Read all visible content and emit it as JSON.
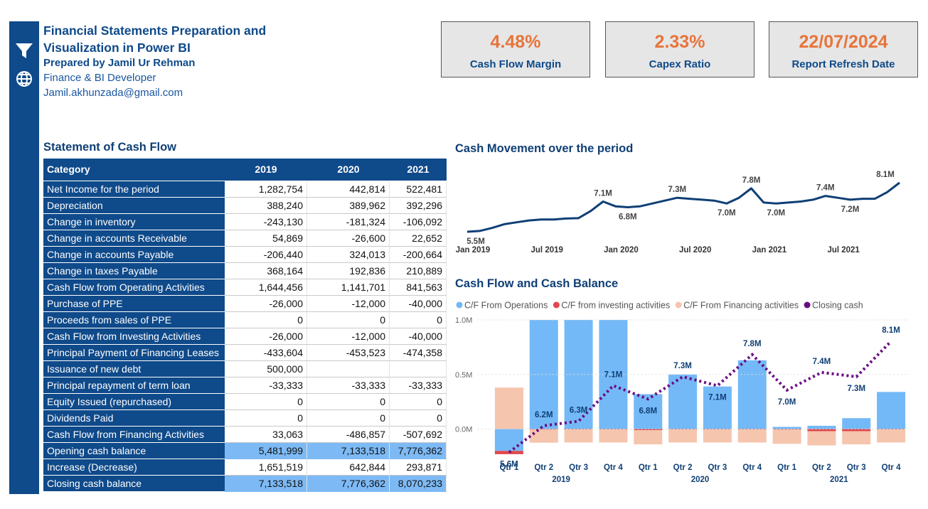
{
  "header": {
    "title": "Financial Statements Preparation and Visualization in Power BI",
    "author": "Prepared by Jamil Ur Rehman",
    "role": "Finance & BI Developer",
    "email": "Jamil.akhunzada@gmail.com"
  },
  "kpis": [
    {
      "value": "4.48%",
      "label": "Cash Flow Margin"
    },
    {
      "value": "2.33%",
      "label": "Capex Ratio"
    },
    {
      "value": "22/07/2024",
      "label": "Report Refresh Date"
    }
  ],
  "table": {
    "title": "Statement of Cash Flow",
    "columns": [
      "Category",
      "2019",
      "2020",
      "2021"
    ],
    "rows": [
      [
        "Net Income for the period",
        "1,282,754",
        "442,814",
        "522,481"
      ],
      [
        "Depreciation",
        "388,240",
        "389,962",
        "392,296"
      ],
      [
        "Change in inventory",
        "-243,130",
        "-181,324",
        "-106,092"
      ],
      [
        "Change in accounts Receivable",
        "54,869",
        "-26,600",
        "22,652"
      ],
      [
        "Change in accounts Payable",
        "-206,440",
        "324,013",
        "-200,664"
      ],
      [
        "Change in taxes Payable",
        "368,164",
        "192,836",
        "210,889"
      ],
      [
        "Cash Flow from Operating Activities",
        "1,644,456",
        "1,141,701",
        "841,563"
      ],
      [
        "Purchase of PPE",
        "-26,000",
        "-12,000",
        "-40,000"
      ],
      [
        "Proceeds from sales of PPE",
        "0",
        "0",
        "0"
      ],
      [
        "Cash Flow from Investing Activities",
        "-26,000",
        "-12,000",
        "-40,000"
      ],
      [
        "Principal Payment of Financing Leases",
        "-433,604",
        "-453,523",
        "-474,358"
      ],
      [
        "Issuance of new debt",
        "500,000",
        null,
        null
      ],
      [
        "Principal repayment of term loan",
        "-33,333",
        "-33,333",
        "-33,333"
      ],
      [
        "Equity Issued (repurchased)",
        "0",
        "0",
        "0"
      ],
      [
        "Dividends Paid",
        "0",
        "0",
        "0"
      ],
      [
        "Cash Flow from Financing Activities",
        "33,063",
        "-486,857",
        "-507,692"
      ],
      [
        "Opening cash balance",
        "5,481,999",
        "7,133,518",
        "7,776,362"
      ],
      [
        "Increase (Decrease)",
        "1,651,519",
        "642,844",
        "293,871"
      ],
      [
        "Closing cash balance",
        "7,133,518",
        "7,776,362",
        "8,070,233"
      ]
    ]
  },
  "chart_data": [
    {
      "type": "line",
      "title": "Cash Movement over the period",
      "categories": [
        "Jan 2019",
        null,
        null,
        null,
        null,
        null,
        "Jul 2019",
        null,
        null,
        null,
        null,
        null,
        "Jan 2020",
        null,
        null,
        null,
        null,
        null,
        "Jul 2020",
        null,
        null,
        null,
        null,
        null,
        "Jan 2021",
        null,
        null,
        null,
        null,
        null,
        "Jul 2021",
        null,
        null,
        null,
        null,
        null
      ],
      "values": [
        5.5,
        5.54,
        5.7,
        5.9,
        6.0,
        6.1,
        6.15,
        6.15,
        6.2,
        6.22,
        6.6,
        7.1,
        6.85,
        6.8,
        6.85,
        7.0,
        7.15,
        7.3,
        7.25,
        7.2,
        7.15,
        7.0,
        7.3,
        7.8,
        7.05,
        7.0,
        7.05,
        7.1,
        7.2,
        7.4,
        7.3,
        7.2,
        7.25,
        7.25,
        7.6,
        8.1
      ],
      "value_labels": [
        "5.5M",
        null,
        null,
        null,
        null,
        null,
        null,
        null,
        null,
        null,
        null,
        "7.1M",
        null,
        "6.8M",
        null,
        null,
        null,
        "7.3M",
        null,
        null,
        null,
        "7.0M",
        null,
        "7.8M",
        null,
        "7.0M",
        null,
        null,
        null,
        "7.4M",
        null,
        "7.2M",
        null,
        null,
        null,
        "8.1M"
      ],
      "color": "#0f3f75"
    },
    {
      "type": "combo",
      "title": "Cash Flow and Cash Balance",
      "categories": [
        "Qtr 1",
        "Qtr 2",
        "Qtr 3",
        "Qtr 4",
        "Qtr 1",
        "Qtr 2",
        "Qtr 3",
        "Qtr 4",
        "Qtr 1",
        "Qtr 2",
        "Qtr 3",
        "Qtr 4"
      ],
      "x_groups": [
        "2019",
        "2020",
        "2021"
      ],
      "ylim": [
        -0.27,
        1.0
      ],
      "yticks": [
        {
          "value": 1.0,
          "label": "1.0M"
        },
        {
          "value": 0.5,
          "label": "0.5M"
        },
        {
          "value": 0,
          "label": "0.0M"
        }
      ],
      "y2lim": [
        5.46,
        8.58
      ],
      "grid": true,
      "legend": "top",
      "series": [
        {
          "name": "C/F From Operations",
          "color": "#74b9f7",
          "values": [
            -0.2,
            1.1,
            1.1,
            1.1,
            0.32,
            0.5,
            0.39,
            0.63,
            0.02,
            0.03,
            0.1,
            0.34
          ]
        },
        {
          "name": "C/F from investing activities",
          "color": "#e0474c",
          "values": [
            -0.03,
            -0.005,
            -0.003,
            -0.003,
            -0.01,
            -0.003,
            -0.003,
            -0.003,
            -0.005,
            -0.02,
            -0.02,
            -0.003
          ]
        },
        {
          "name": "C/F From Financing activities",
          "color": "#f6c5ae",
          "values": [
            0.38,
            -0.12,
            -0.12,
            -0.12,
            -0.13,
            -0.12,
            -0.12,
            -0.12,
            -0.13,
            -0.13,
            -0.12,
            -0.12
          ]
        },
        {
          "name": "Closing cash",
          "color": "#6a0d83",
          "type": "line",
          "axis": "y2",
          "values": [
            5.6,
            6.2,
            6.3,
            7.1,
            6.8,
            7.3,
            7.1,
            7.8,
            7.0,
            7.4,
            7.3,
            8.1
          ],
          "value_labels": [
            "5.6M",
            "6.2M",
            "6.3M",
            "7.1M",
            "6.8M",
            "7.3M",
            "7.1M",
            "7.8M",
            "7.0M",
            "7.4M",
            "7.3M",
            "8.1M"
          ]
        }
      ]
    }
  ]
}
